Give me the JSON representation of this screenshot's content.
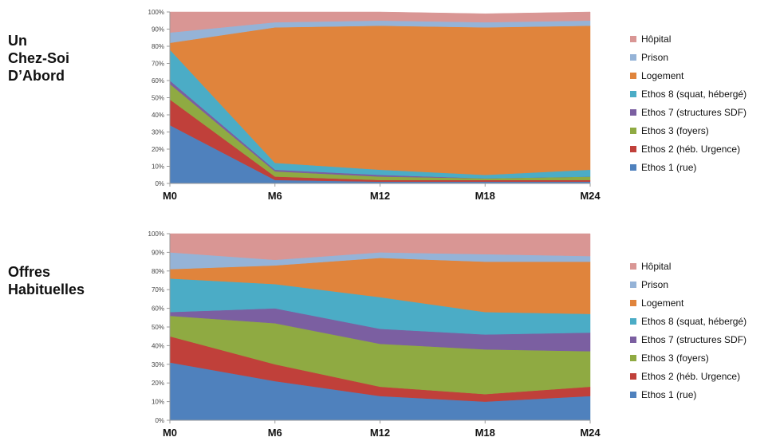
{
  "colors": {
    "hopital": "#d99694",
    "prison": "#95b3d7",
    "logement": "#e0843c",
    "ethos8": "#4bacc6",
    "ethos7": "#7b5fa1",
    "ethos3": "#8faa42",
    "ethos2": "#c0403a",
    "ethos1": "#4f81bd"
  },
  "chart_data": [
    {
      "type": "area",
      "stacked": "percent",
      "group_label": "Un\nChez-Soi\nD’Abord",
      "categories": [
        "M0",
        "M6",
        "M12",
        "M18",
        "M24"
      ],
      "y_ticks": [
        "0%",
        "10%",
        "20%",
        "30%",
        "40%",
        "50%",
        "60%",
        "70%",
        "80%",
        "90%",
        "100%"
      ],
      "ylim": [
        0,
        100
      ],
      "legend_position": "right",
      "series": [
        {
          "name": "Ethos 1 (rue)",
          "color_key": "ethos1",
          "values": [
            34,
            2,
            1,
            1,
            1
          ]
        },
        {
          "name": "Ethos 2 (héb. Urgence)",
          "color_key": "ethos2",
          "values": [
            15,
            2,
            1,
            1,
            1
          ]
        },
        {
          "name": "Ethos 3 (foyers)",
          "color_key": "ethos3",
          "values": [
            9,
            3,
            2,
            1,
            2
          ]
        },
        {
          "name": "Ethos 7 (structures SDF)",
          "color_key": "ethos7",
          "values": [
            2,
            1,
            1,
            0,
            0
          ]
        },
        {
          "name": "Ethos 8 (squat, hébergé)",
          "color_key": "ethos8",
          "values": [
            18,
            4,
            3,
            2,
            4
          ]
        },
        {
          "name": "Logement",
          "color_key": "logement",
          "values": [
            4,
            79,
            84,
            86,
            84
          ]
        },
        {
          "name": "Prison",
          "color_key": "prison",
          "values": [
            6,
            3,
            3,
            3,
            3
          ]
        },
        {
          "name": "Hôpital",
          "color_key": "hopital",
          "values": [
            12,
            6,
            5,
            5,
            5
          ]
        }
      ]
    },
    {
      "type": "area",
      "stacked": "percent",
      "group_label": "Offres\nHabituelles",
      "categories": [
        "M0",
        "M6",
        "M12",
        "M18",
        "M24"
      ],
      "y_ticks": [
        "0%",
        "10%",
        "20%",
        "30%",
        "40%",
        "50%",
        "60%",
        "70%",
        "80%",
        "90%",
        "100%"
      ],
      "ylim": [
        0,
        100
      ],
      "legend_position": "right",
      "series": [
        {
          "name": "Ethos 1 (rue)",
          "color_key": "ethos1",
          "values": [
            31,
            21,
            13,
            10,
            13
          ]
        },
        {
          "name": "Ethos 2 (héb. Urgence)",
          "color_key": "ethos2",
          "values": [
            14,
            9,
            5,
            4,
            5
          ]
        },
        {
          "name": "Ethos 3 (foyers)",
          "color_key": "ethos3",
          "values": [
            11,
            22,
            23,
            24,
            19
          ]
        },
        {
          "name": "Ethos 7 (structures SDF)",
          "color_key": "ethos7",
          "values": [
            2,
            8,
            8,
            8,
            10
          ]
        },
        {
          "name": "Ethos 8 (squat, hébergé)",
          "color_key": "ethos8",
          "values": [
            18,
            13,
            17,
            12,
            10
          ]
        },
        {
          "name": "Logement",
          "color_key": "logement",
          "values": [
            5,
            10,
            21,
            27,
            28
          ]
        },
        {
          "name": "Prison",
          "color_key": "prison",
          "values": [
            9,
            3,
            3,
            4,
            3
          ]
        },
        {
          "name": "Hôpital",
          "color_key": "hopital",
          "values": [
            10,
            14,
            10,
            11,
            12
          ]
        }
      ]
    }
  ]
}
